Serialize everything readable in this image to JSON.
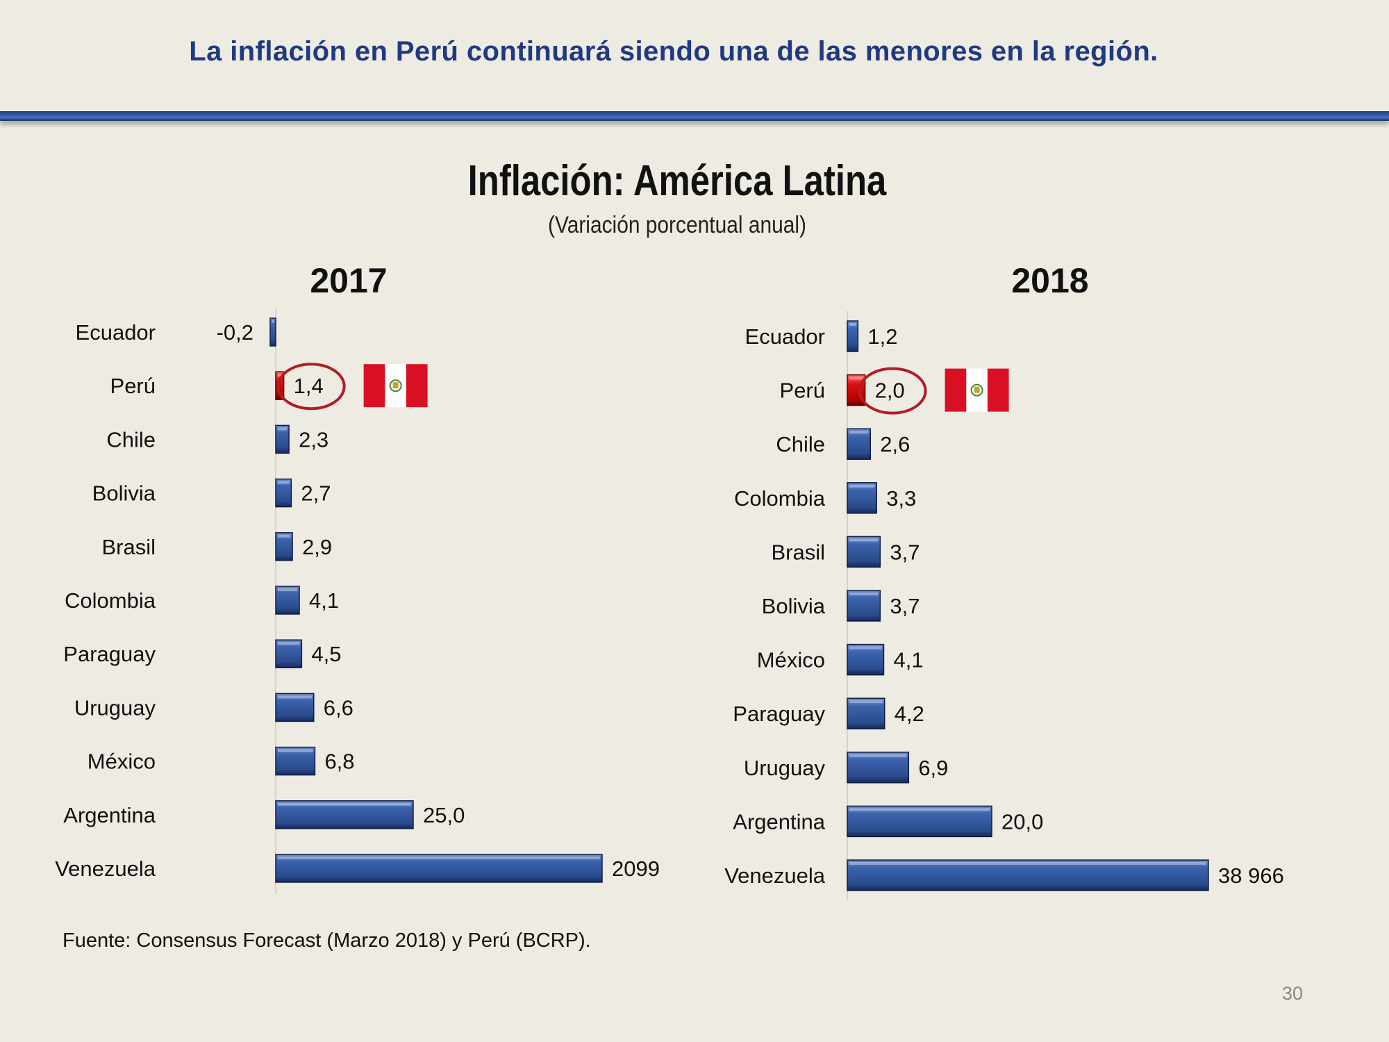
{
  "slide": {
    "headline": "La inflación en Perú continuará siendo una de las menores en la región.",
    "source": "Fuente: Consensus Forecast (Marzo 2018) y Perú (BCRP).",
    "page_number": "30"
  },
  "colors": {
    "bar": "#2a4b8c",
    "highlight": "#cc0000",
    "headline": "#1f3a80",
    "circle": "#b01e24"
  },
  "chart_data": [
    {
      "type": "bar",
      "orientation": "horizontal",
      "title": "Inflación: América Latina",
      "subtitle": "(Variación porcentual anual)",
      "panel_label": "2017",
      "categories": [
        "Ecuador",
        "Perú",
        "Chile",
        "Bolivia",
        "Brasil",
        "Colombia",
        "Paraguay",
        "Uruguay",
        "México",
        "Argentina",
        "Venezuela"
      ],
      "values": [
        -0.2,
        1.4,
        2.3,
        2.7,
        2.9,
        4.1,
        4.5,
        6.6,
        6.8,
        25.0,
        2099
      ],
      "value_labels": [
        "-0,2",
        "1,4",
        "2,3",
        "2,7",
        "2,9",
        "4,1",
        "4,5",
        "6,6",
        "6,8",
        "25,0",
        "2099"
      ],
      "highlight": "Perú",
      "scale": "non-linear (bars truncated for large values)"
    },
    {
      "type": "bar",
      "orientation": "horizontal",
      "panel_label": "2018",
      "categories": [
        "Ecuador",
        "Perú",
        "Chile",
        "Colombia",
        "Brasil",
        "Bolivia",
        "México",
        "Paraguay",
        "Uruguay",
        "Argentina",
        "Venezuela"
      ],
      "values": [
        1.2,
        2.0,
        2.6,
        3.3,
        3.7,
        3.7,
        4.1,
        4.2,
        6.9,
        20.0,
        38966
      ],
      "value_labels": [
        "1,2",
        "2,0",
        "2,6",
        "3,3",
        "3,7",
        "3,7",
        "4,1",
        "4,2",
        "6,9",
        "20,0",
        "38 966"
      ],
      "highlight": "Perú",
      "scale": "non-linear (bars truncated for large values)"
    }
  ]
}
